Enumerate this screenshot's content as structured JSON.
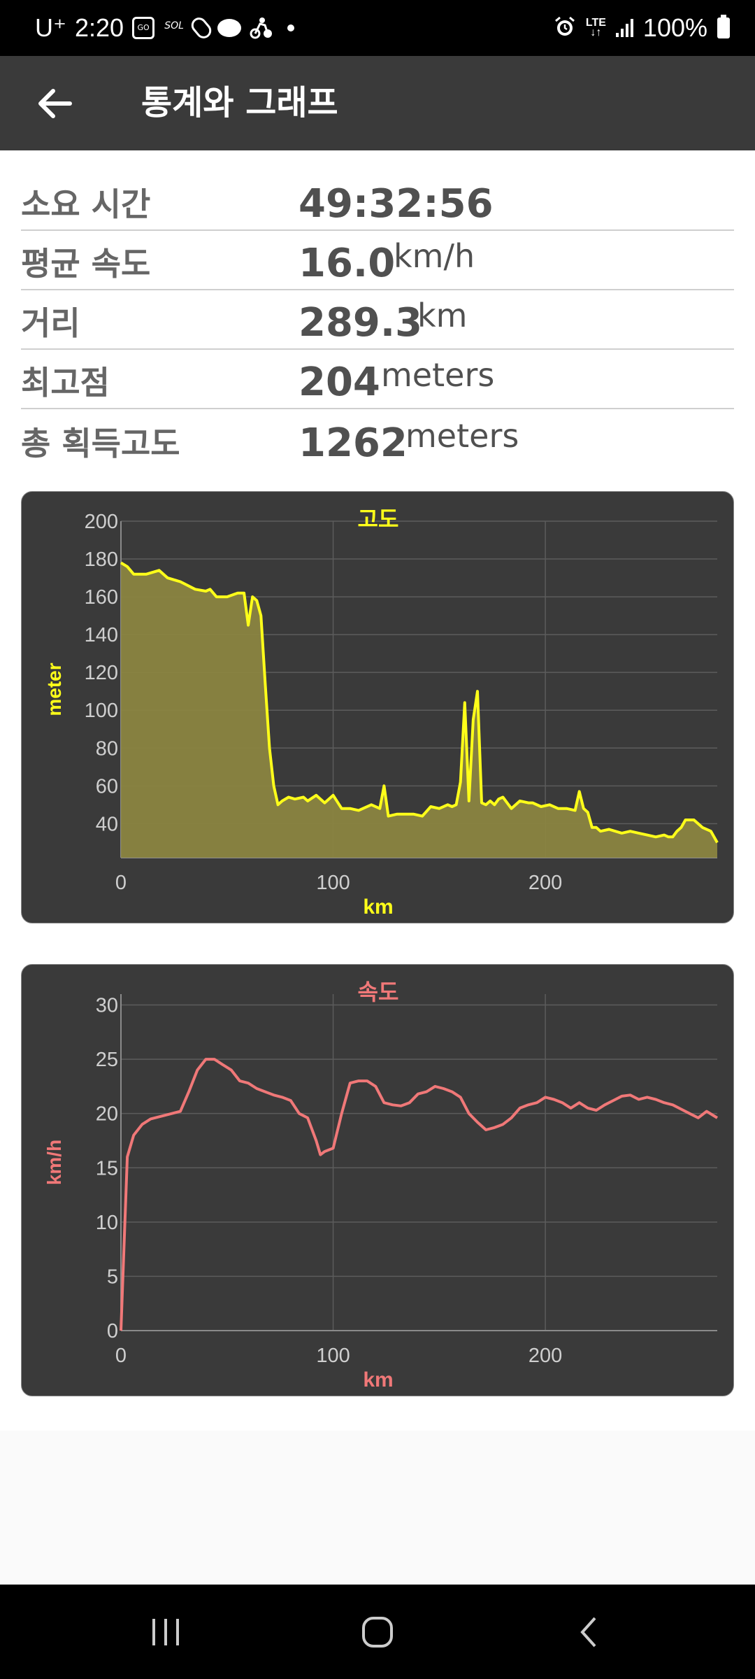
{
  "status_bar": {
    "carrier": "U⁺",
    "time": "2:20",
    "network": "LTE",
    "battery": "100%",
    "icons": [
      "go-icon",
      "super-sol-icon",
      "pill-icon",
      "chat-icon",
      "cycling-icon",
      "alarm-icon",
      "signal-icon",
      "battery-icon"
    ]
  },
  "app_bar": {
    "back_icon": "arrow-left-icon",
    "title": "통계와 그래프"
  },
  "stats": [
    {
      "label": "소요 시간",
      "value": "49:32:56",
      "unit": ""
    },
    {
      "label": "평균 속도",
      "value": "16.0",
      "unit": "km/h"
    },
    {
      "label": "거리",
      "value": "289.3",
      "unit": "km"
    },
    {
      "label": "최고점",
      "value": "204",
      "unit": "meters"
    },
    {
      "label": "총 획득고도",
      "value": "1262",
      "unit": "meters"
    }
  ],
  "chart_data": [
    {
      "type": "area",
      "title": "고도",
      "xlabel": "km",
      "ylabel": "meter",
      "xlim": [
        0,
        281
      ],
      "ylim": [
        22,
        200
      ],
      "yticks": [
        40,
        60,
        80,
        100,
        120,
        140,
        160,
        180,
        200
      ],
      "xticks": [
        0,
        100,
        200
      ],
      "grid": true,
      "color": "#ffff1a",
      "fill": "#8a8440",
      "x": [
        0,
        3,
        6,
        12,
        18,
        22,
        28,
        35,
        40,
        42,
        45,
        50,
        55,
        58,
        60,
        62,
        64,
        66,
        68,
        70,
        72,
        74,
        76,
        79,
        82,
        86,
        88,
        92,
        96,
        100,
        104,
        108,
        112,
        118,
        122,
        124,
        126,
        130,
        134,
        138,
        142,
        146,
        150,
        154,
        156,
        158,
        160,
        162,
        164,
        166,
        168,
        170,
        172,
        174,
        176,
        178,
        180,
        184,
        188,
        192,
        194,
        198,
        202,
        206,
        210,
        214,
        216,
        218,
        220,
        222,
        224,
        226,
        230,
        236,
        240,
        244,
        248,
        252,
        256,
        258,
        260,
        262,
        264,
        266,
        268,
        270,
        272,
        274,
        278,
        281
      ],
      "y": [
        178,
        176,
        172,
        172,
        174,
        170,
        168,
        164,
        163,
        164,
        160,
        160,
        162,
        162,
        145,
        160,
        158,
        150,
        114,
        80,
        60,
        50,
        52,
        54,
        53,
        54,
        52,
        55,
        51,
        55,
        48,
        48,
        47,
        50,
        48,
        60,
        44,
        45,
        45,
        45,
        44,
        49,
        48,
        50,
        49,
        50,
        62,
        104,
        52,
        95,
        110,
        51,
        50,
        52,
        50,
        53,
        54,
        48,
        52,
        51,
        51,
        49,
        50,
        48,
        48,
        47,
        57,
        48,
        46,
        38,
        38,
        36,
        37,
        35,
        36,
        35,
        34,
        33,
        34,
        33,
        33,
        36,
        38,
        42,
        42,
        42,
        40,
        38,
        36,
        30
      ]
    },
    {
      "type": "line",
      "title": "속도",
      "xlabel": "km",
      "ylabel": "km/h",
      "xlim": [
        0,
        281
      ],
      "ylim": [
        0,
        31
      ],
      "yticks": [
        0,
        5,
        10,
        15,
        20,
        25,
        30
      ],
      "xticks": [
        0,
        100,
        200
      ],
      "grid": true,
      "color": "#f07878",
      "x": [
        0,
        3,
        6,
        10,
        14,
        20,
        28,
        32,
        36,
        40,
        44,
        48,
        52,
        56,
        60,
        64,
        68,
        72,
        76,
        80,
        84,
        88,
        92,
        94,
        96,
        100,
        104,
        108,
        112,
        116,
        120,
        124,
        128,
        132,
        136,
        140,
        144,
        148,
        152,
        156,
        160,
        164,
        168,
        172,
        176,
        180,
        184,
        188,
        192,
        196,
        200,
        204,
        208,
        212,
        216,
        220,
        224,
        228,
        232,
        236,
        240,
        244,
        248,
        252,
        256,
        260,
        264,
        268,
        272,
        276,
        281
      ],
      "y": [
        0,
        16,
        18,
        19,
        19.5,
        19.8,
        20.2,
        22,
        24,
        25,
        25,
        24.5,
        24,
        23,
        22.8,
        22.3,
        22,
        21.7,
        21.5,
        21.2,
        20,
        19.6,
        17.5,
        16.2,
        16.5,
        16.8,
        20,
        22.8,
        23,
        23,
        22.5,
        21,
        20.8,
        20.7,
        21,
        21.8,
        22,
        22.5,
        22.3,
        22,
        21.5,
        20,
        19.2,
        18.5,
        18.7,
        19,
        19.6,
        20.5,
        20.8,
        21,
        21.5,
        21.3,
        21,
        20.5,
        21,
        20.5,
        20.3,
        20.8,
        21.2,
        21.6,
        21.7,
        21.3,
        21.5,
        21.3,
        21,
        20.8,
        20.4,
        20,
        19.6,
        20.2,
        19.6
      ]
    }
  ],
  "nav_bar": {
    "icons": [
      "recent-apps-icon",
      "home-icon",
      "back-icon"
    ]
  }
}
